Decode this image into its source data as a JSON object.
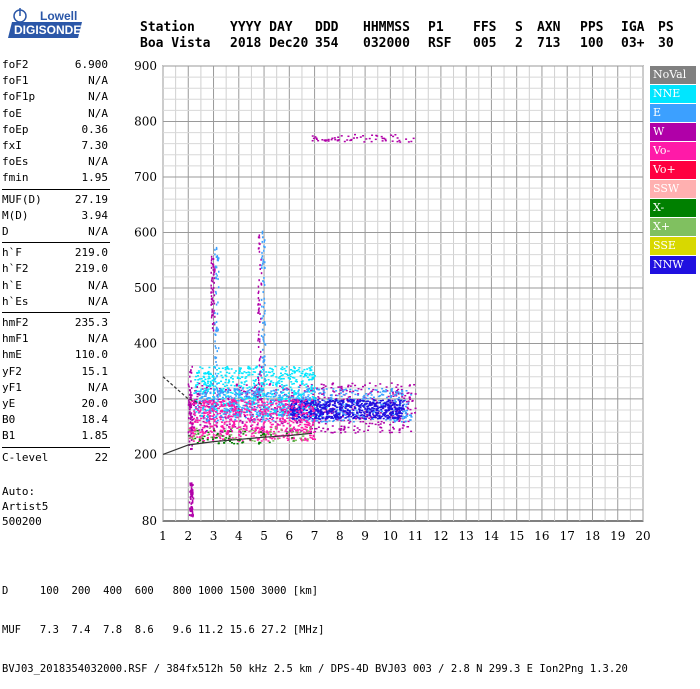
{
  "logo": {
    "line1": "Lowell",
    "line2": "DIGISONDE"
  },
  "header": {
    "labels": [
      "Station",
      "YYYY DAY",
      "DDD",
      "HHMMSS",
      "P1",
      "FFS",
      "S",
      "AXN",
      "PPS",
      "IGA",
      "PS"
    ],
    "values": [
      "Boa Vista",
      "2018 Dec20",
      "354",
      "032000",
      "RSF",
      "005",
      "2",
      "713",
      "100",
      "03+",
      "30"
    ]
  },
  "params": {
    "group1": [
      {
        "label": "foF2",
        "value": "6.900"
      },
      {
        "label": "foF1",
        "value": "N/A"
      },
      {
        "label": "foF1p",
        "value": "N/A"
      },
      {
        "label": "foE",
        "value": "N/A"
      },
      {
        "label": "foEp",
        "value": "0.36"
      },
      {
        "label": "fxI",
        "value": "7.30"
      },
      {
        "label": "foEs",
        "value": "N/A"
      },
      {
        "label": "fmin",
        "value": "1.95"
      }
    ],
    "group2": [
      {
        "label": "MUF(D)",
        "value": "27.19"
      },
      {
        "label": "M(D)",
        "value": "3.94"
      },
      {
        "label": "D",
        "value": "N/A"
      }
    ],
    "group3": [
      {
        "label": "h`F",
        "value": "219.0"
      },
      {
        "label": "h`F2",
        "value": "219.0"
      },
      {
        "label": "h`E",
        "value": "N/A"
      },
      {
        "label": "h`Es",
        "value": "N/A"
      }
    ],
    "group4": [
      {
        "label": "hmF2",
        "value": "235.3"
      },
      {
        "label": "hmF1",
        "value": "N/A"
      },
      {
        "label": "hmE",
        "value": "110.0"
      },
      {
        "label": "yF2",
        "value": "15.1"
      },
      {
        "label": "yF1",
        "value": "N/A"
      },
      {
        "label": "yE",
        "value": "20.0"
      },
      {
        "label": "B0",
        "value": "18.4"
      },
      {
        "label": "B1",
        "value": "1.85"
      }
    ],
    "group5": [
      {
        "label": "C-level",
        "value": "22"
      }
    ]
  },
  "auto": {
    "line1": "Auto:",
    "line2": "Artist5",
    "line3": "500200"
  },
  "legend": [
    {
      "label": "NoVal",
      "color": "#808080",
      "text": "#ffffff"
    },
    {
      "label": "NNE",
      "color": "#00e6ff",
      "text": "#ffffff"
    },
    {
      "label": "E",
      "color": "#3ca0ff",
      "text": "#ffffff"
    },
    {
      "label": "W",
      "color": "#b000a8",
      "text": "#ffffff"
    },
    {
      "label": "Vo-",
      "color": "#ff1aa8",
      "text": "#ffffff"
    },
    {
      "label": "Vo+",
      "color": "#ff0040",
      "text": "#ffffff"
    },
    {
      "label": "SSW",
      "color": "#ffb0b0",
      "text": "#ffffff"
    },
    {
      "label": "X-",
      "color": "#008000",
      "text": "#ffffff"
    },
    {
      "label": "X+",
      "color": "#80c060",
      "text": "#ffffff"
    },
    {
      "label": "SSE",
      "color": "#d8d800",
      "text": "#ffffff"
    },
    {
      "label": "NNW",
      "color": "#2010e0",
      "text": "#ffffff"
    }
  ],
  "footer": {
    "line1": "D     100  200  400  600   800 1000 1500 3000 [km]",
    "line2": "MUF   7.3  7.4  7.8  8.6   9.6 11.2 15.6 27.2 [MHz]",
    "line3": "BVJ03_2018354032000.RSF / 384fx512h 50 kHz 2.5 km / DPS-4D BVJ03 003 / 2.8 N 299.3 E Ion2Png 1.3.20"
  },
  "chart_data": {
    "type": "scatter",
    "title": "",
    "xlabel": "",
    "ylabel": "",
    "xlim": [
      1,
      20
    ],
    "ylim": [
      80,
      900
    ],
    "x_ticks": [
      1,
      2,
      3,
      4,
      5,
      6,
      7,
      8,
      9,
      10,
      11,
      12,
      13,
      14,
      15,
      16,
      17,
      18,
      19,
      20
    ],
    "y_ticks": [
      80,
      200,
      300,
      400,
      500,
      600,
      700,
      800,
      900
    ],
    "grid": true,
    "legend_position": "right",
    "clusters": [
      {
        "name": "W",
        "color": "#b000a8",
        "x_range": [
          2.0,
          11.0
        ],
        "y_range": [
          240,
          330
        ]
      },
      {
        "name": "NNE",
        "color": "#00e6ff",
        "x_range": [
          2.2,
          7.0
        ],
        "y_range": [
          270,
          360
        ]
      },
      {
        "name": "E",
        "color": "#3ca0ff",
        "x_range": [
          2.2,
          10.8
        ],
        "y_range": [
          260,
          320
        ]
      },
      {
        "name": "NNW",
        "color": "#2010e0",
        "x_range": [
          6.0,
          10.5
        ],
        "y_range": [
          265,
          300
        ]
      },
      {
        "name": "Vo-",
        "color": "#ff1aa8",
        "x_range": [
          2.0,
          7.0
        ],
        "y_range": [
          225,
          300
        ]
      },
      {
        "name": "X-",
        "color": "#008000",
        "x_range": [
          2.0,
          6.5
        ],
        "y_range": [
          220,
          245
        ]
      },
      {
        "name": "X+",
        "color": "#80c060",
        "x_range": [
          2.0,
          7.0
        ],
        "y_range": [
          225,
          250
        ]
      },
      {
        "name": "W",
        "color": "#b000a8",
        "x_range": [
          6.8,
          10.9
        ],
        "y_range": [
          764,
          778
        ]
      }
    ],
    "traces": [
      {
        "name": "O-trace fit",
        "x": [
          1.0,
          2.0,
          3.0,
          4.0,
          5.0,
          6.0,
          6.9
        ],
        "y": [
          200,
          217,
          223,
          227,
          231,
          234,
          238
        ]
      },
      {
        "name": "X-trace fit",
        "x": [
          1.0,
          2.0,
          2.6
        ],
        "y": [
          340,
          300,
          290
        ]
      }
    ]
  }
}
